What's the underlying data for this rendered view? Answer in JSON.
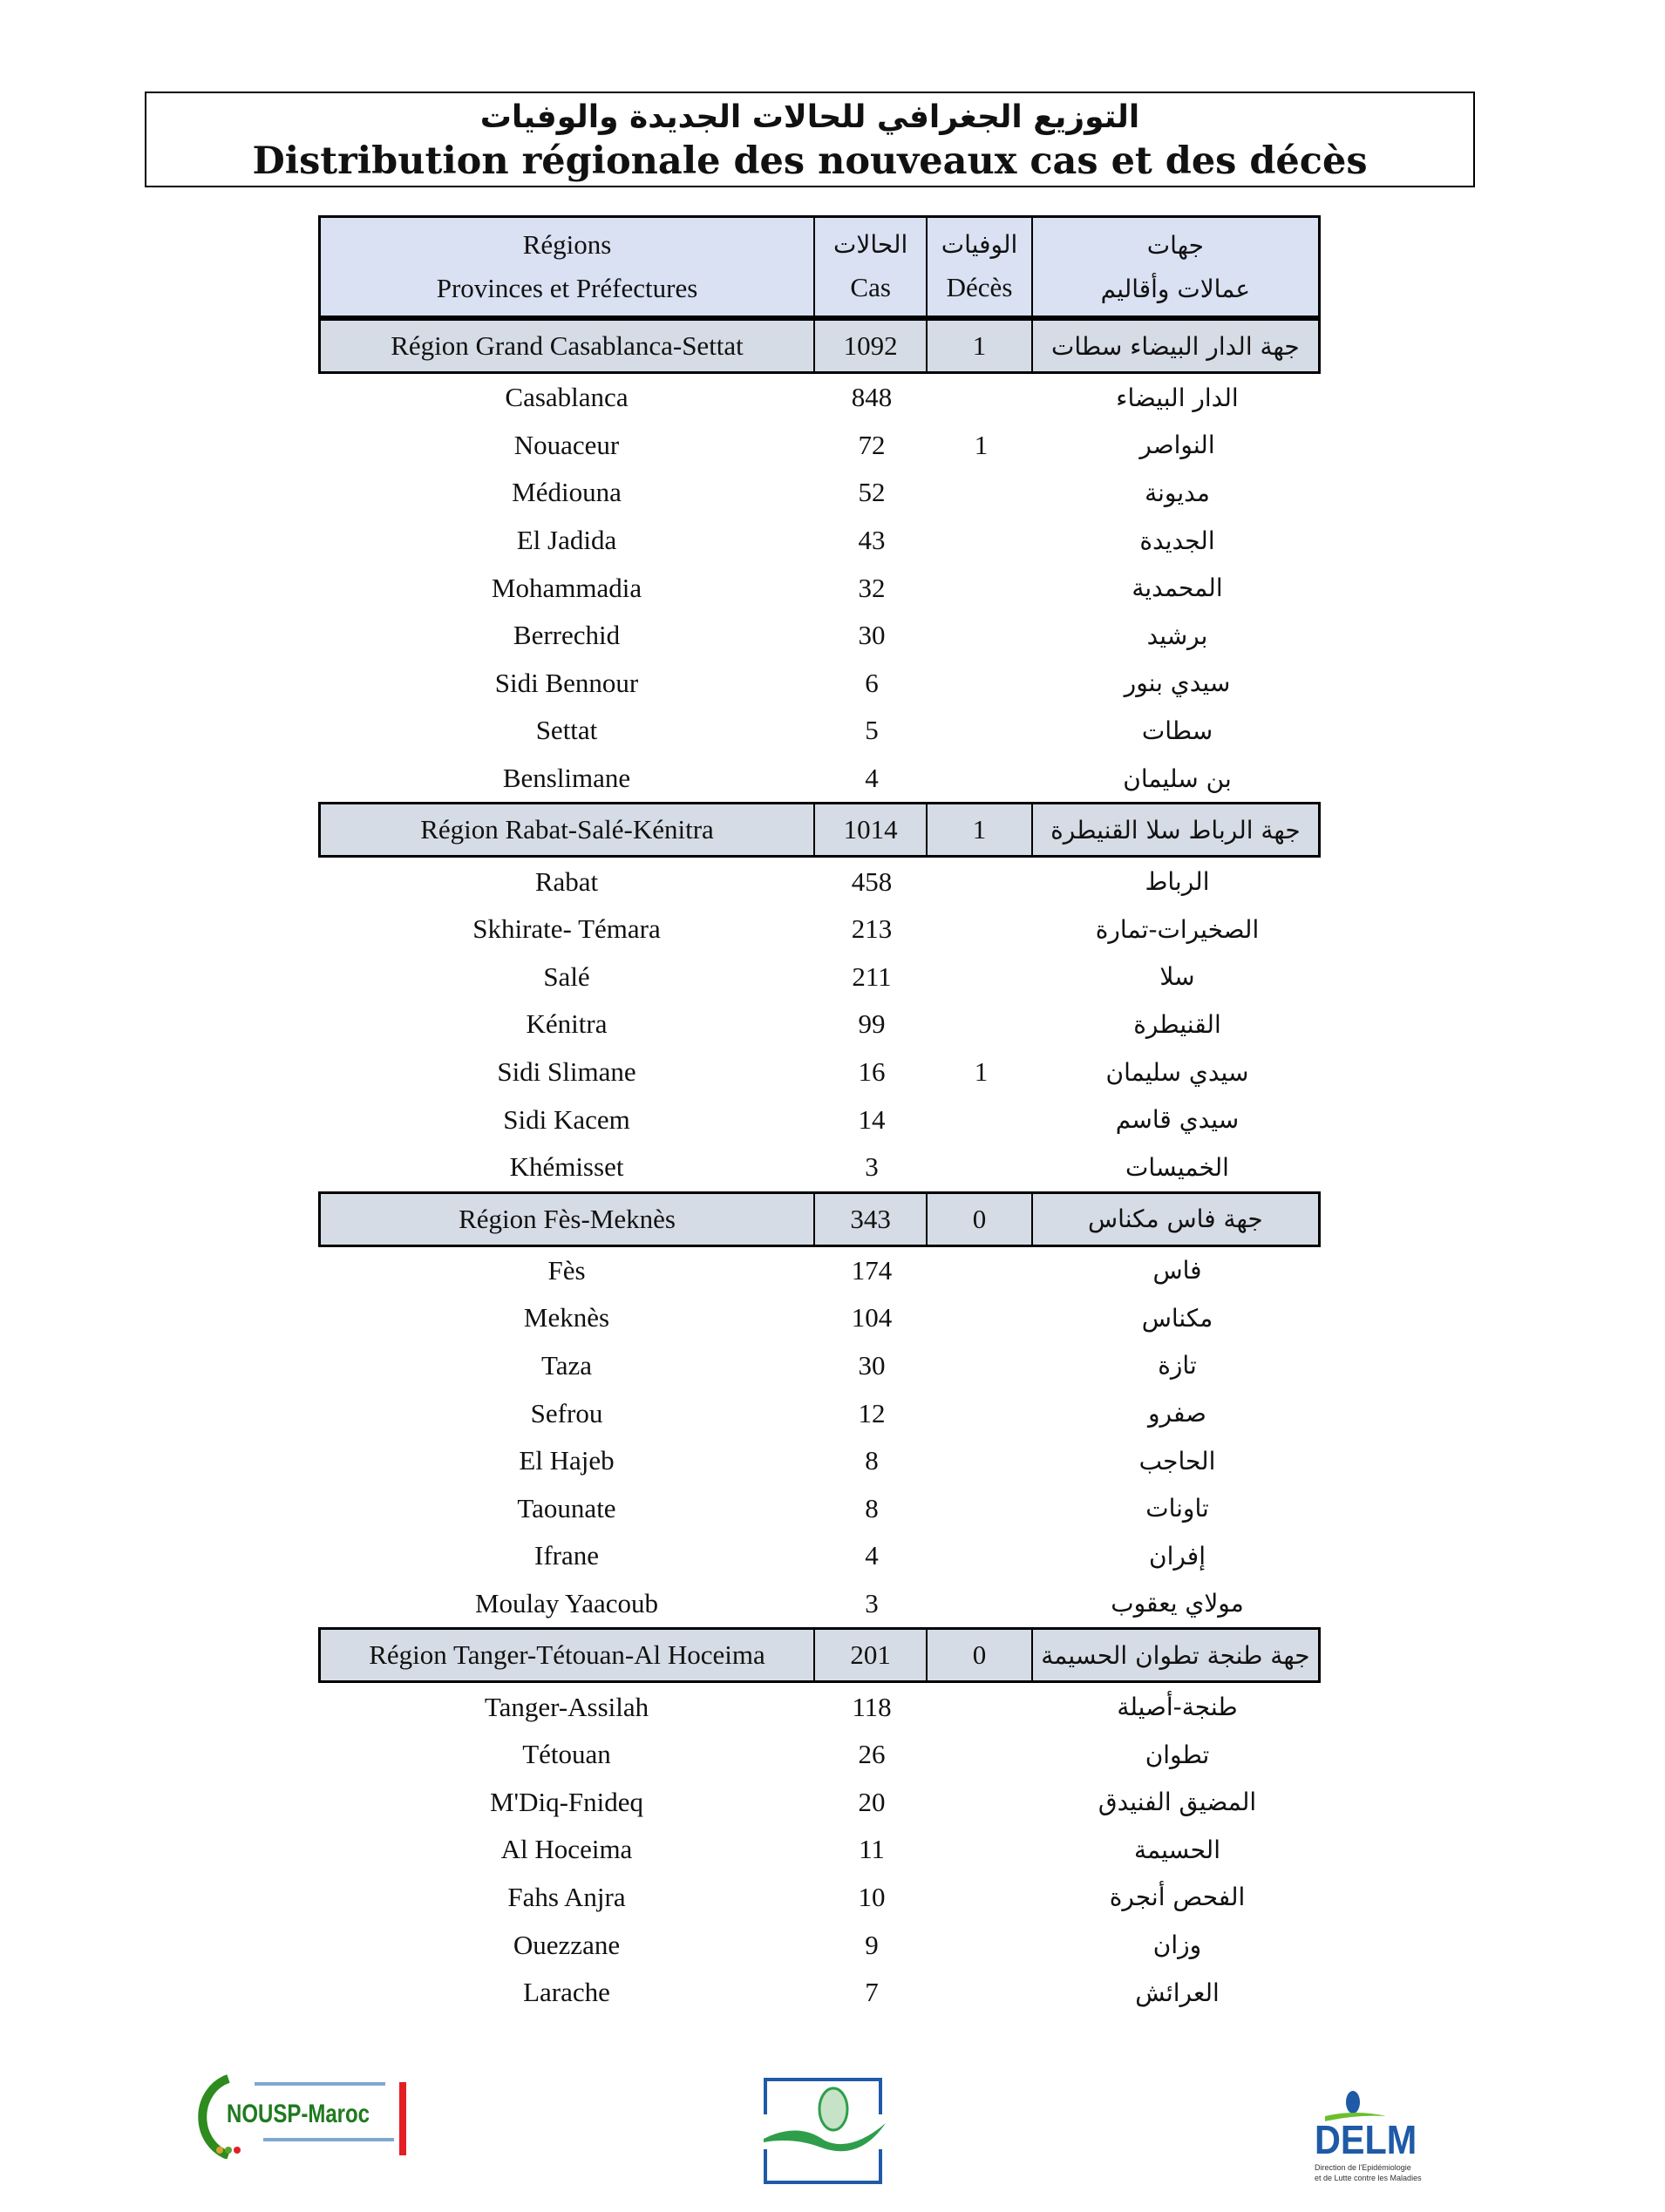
{
  "title": {
    "arabic": "التوزيع الجغرافي للحالات الجديدة والوفيات",
    "french": "Distribution régionale des nouveaux cas et des décès"
  },
  "header": {
    "regions_fr": "Régions",
    "provinces_fr": "Provinces et Préfectures",
    "cases_ar": "الحالات",
    "cases_fr": "Cas",
    "deaths_ar": "الوفيات",
    "deaths_fr": "Décès",
    "regions_ar": "جهات",
    "provinces_ar": "عمالات وأقاليم"
  },
  "colors": {
    "header_bg": "#d9e1f2",
    "region_bg": "#d6dce5"
  },
  "regions": [
    {
      "name_fr": "Région Grand Casablanca-Settat",
      "cases": "1092",
      "deaths": "1",
      "name_ar": "جهة الدار البيضاء سطات",
      "provinces": [
        {
          "name_fr": "Casablanca",
          "cases": "848",
          "deaths": "",
          "name_ar": "الدار البيضاء"
        },
        {
          "name_fr": "Nouaceur",
          "cases": "72",
          "deaths": "1",
          "name_ar": "النواصر"
        },
        {
          "name_fr": "Médiouna",
          "cases": "52",
          "deaths": "",
          "name_ar": "مديونة"
        },
        {
          "name_fr": "El Jadida",
          "cases": "43",
          "deaths": "",
          "name_ar": "الجديدة"
        },
        {
          "name_fr": "Mohammadia",
          "cases": "32",
          "deaths": "",
          "name_ar": "المحمدية"
        },
        {
          "name_fr": "Berrechid",
          "cases": "30",
          "deaths": "",
          "name_ar": "برشيد"
        },
        {
          "name_fr": "Sidi Bennour",
          "cases": "6",
          "deaths": "",
          "name_ar": "سيدي بنور"
        },
        {
          "name_fr": "Settat",
          "cases": "5",
          "deaths": "",
          "name_ar": "سطات"
        },
        {
          "name_fr": "Benslimane",
          "cases": "4",
          "deaths": "",
          "name_ar": "بن سليمان"
        }
      ]
    },
    {
      "name_fr": "Région Rabat-Salé-Kénitra",
      "cases": "1014",
      "deaths": "1",
      "name_ar": "جهة الرباط سلا القنيطرة",
      "provinces": [
        {
          "name_fr": "Rabat",
          "cases": "458",
          "deaths": "",
          "name_ar": "الرباط"
        },
        {
          "name_fr": "Skhirate- Témara",
          "cases": "213",
          "deaths": "",
          "name_ar": "الصخيرات-تمارة"
        },
        {
          "name_fr": "Salé",
          "cases": "211",
          "deaths": "",
          "name_ar": "سلا"
        },
        {
          "name_fr": "Kénitra",
          "cases": "99",
          "deaths": "",
          "name_ar": "القنيطرة"
        },
        {
          "name_fr": "Sidi Slimane",
          "cases": "16",
          "deaths": "1",
          "name_ar": "سيدي سليمان"
        },
        {
          "name_fr": "Sidi Kacem",
          "cases": "14",
          "deaths": "",
          "name_ar": "سيدي قاسم"
        },
        {
          "name_fr": "Khémisset",
          "cases": "3",
          "deaths": "",
          "name_ar": "الخميسات"
        }
      ]
    },
    {
      "name_fr": "Région Fès-Meknès",
      "cases": "343",
      "deaths": "0",
      "name_ar": "جهة فاس مكناس",
      "provinces": [
        {
          "name_fr": "Fès",
          "cases": "174",
          "deaths": "",
          "name_ar": "فاس"
        },
        {
          "name_fr": "Meknès",
          "cases": "104",
          "deaths": "",
          "name_ar": "مكناس"
        },
        {
          "name_fr": "Taza",
          "cases": "30",
          "deaths": "",
          "name_ar": "تازة"
        },
        {
          "name_fr": "Sefrou",
          "cases": "12",
          "deaths": "",
          "name_ar": "صفرو"
        },
        {
          "name_fr": "El  Hajeb",
          "cases": "8",
          "deaths": "",
          "name_ar": "الحاجب"
        },
        {
          "name_fr": "Taounate",
          "cases": "8",
          "deaths": "",
          "name_ar": "تاونات"
        },
        {
          "name_fr": "Ifrane",
          "cases": "4",
          "deaths": "",
          "name_ar": "إفران"
        },
        {
          "name_fr": "Moulay Yaacoub",
          "cases": "3",
          "deaths": "",
          "name_ar": "مولاي يعقوب"
        }
      ]
    },
    {
      "name_fr": "Région Tanger-Tétouan-Al Hoceima",
      "cases": "201",
      "deaths": "0",
      "name_ar": "جهة طنجة تطوان الحسيمة",
      "provinces": [
        {
          "name_fr": "Tanger-Assilah",
          "cases": "118",
          "deaths": "",
          "name_ar": "طنجة-أصيلة"
        },
        {
          "name_fr": "Tétouan",
          "cases": "26",
          "deaths": "",
          "name_ar": "تطوان"
        },
        {
          "name_fr": "M'Diq-Fnideq",
          "cases": "20",
          "deaths": "",
          "name_ar": "المضيق الفنيدق"
        },
        {
          "name_fr": "Al Hoceima",
          "cases": "11",
          "deaths": "",
          "name_ar": "الحسيمة"
        },
        {
          "name_fr": "Fahs Anjra",
          "cases": "10",
          "deaths": "",
          "name_ar": "الفحص أنجرة"
        },
        {
          "name_fr": "Ouezzane",
          "cases": "9",
          "deaths": "",
          "name_ar": "وزان"
        },
        {
          "name_fr": "Larache",
          "cases": "7",
          "deaths": "",
          "name_ar": "العرائش"
        }
      ]
    }
  ],
  "logos": {
    "nousp": "NOUSP-Maroc",
    "delm": "DELM",
    "delm_caption_1": "Direction de l'Epidémiologie",
    "delm_caption_2": "et de Lutte contre les Maladies"
  }
}
